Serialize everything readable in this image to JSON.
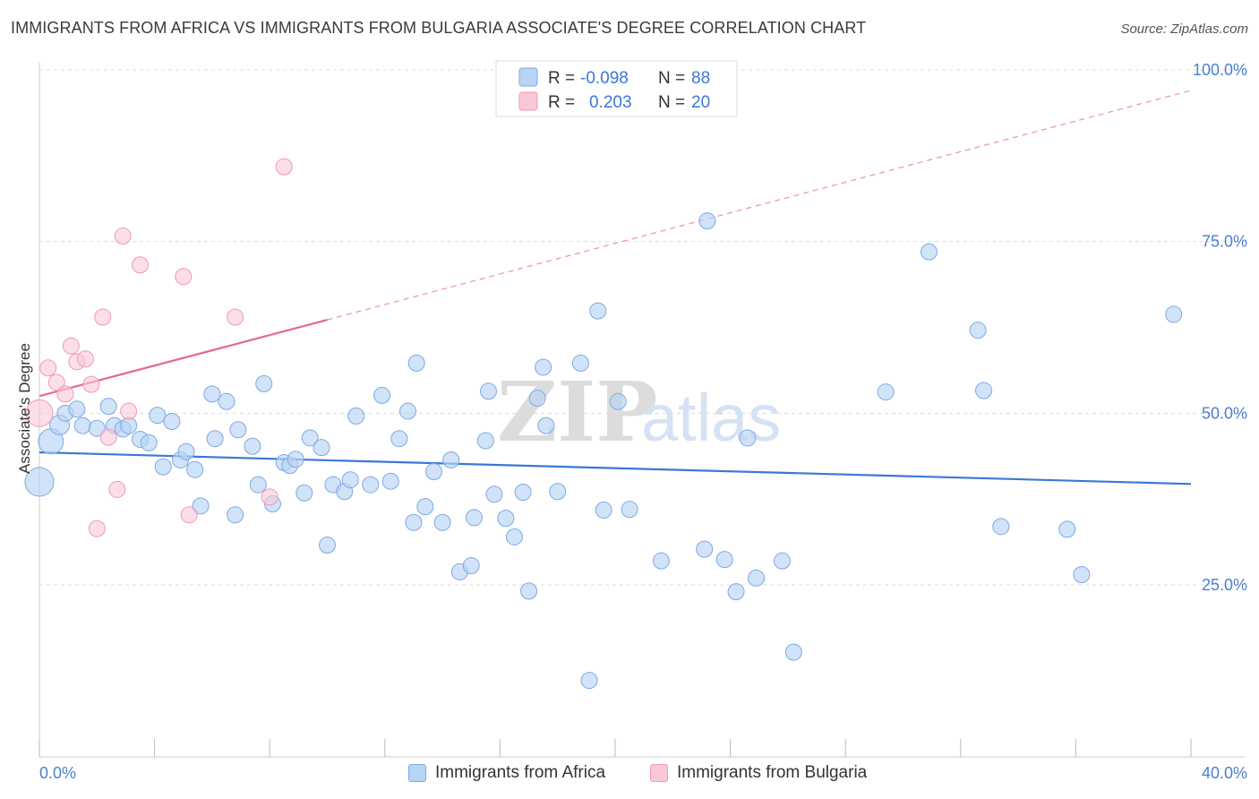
{
  "title": "IMMIGRANTS FROM AFRICA VS IMMIGRANTS FROM BULGARIA ASSOCIATE'S DEGREE CORRELATION CHART",
  "source": "Source: ZipAtlas.com",
  "watermark": {
    "zip": "ZIP",
    "atlas": "atlas"
  },
  "legend_top": {
    "africa": {
      "r_label": "R =",
      "r_value": "-0.098",
      "n_label": "N =",
      "n_value": "88"
    },
    "bulgaria": {
      "r_label": "R =",
      "r_value": "0.203",
      "n_label": "N =",
      "n_value": "20"
    }
  },
  "legend_bottom": {
    "africa": "Immigrants from Africa",
    "bulgaria": "Immigrants from Bulgaria"
  },
  "colors": {
    "africa_fill": "#b8d4f5",
    "africa_stroke": "#7ea9e0",
    "africa_line": "#3b78d8",
    "bulgaria_fill": "#f9c8d8",
    "bulgaria_stroke": "#ef9ab6",
    "bulgaria_line": "#e46a93",
    "axis_text": "#4a7fd0",
    "grid": "#dcdcdc"
  },
  "chart_data": {
    "type": "scatter",
    "title": "IMMIGRANTS FROM AFRICA VS IMMIGRANTS FROM BULGARIA ASSOCIATE'S DEGREE CORRELATION CHART",
    "xlabel": "",
    "ylabel": "Associate's Degree",
    "xlim": [
      0,
      40
    ],
    "ylim": [
      0,
      102
    ],
    "x_tick_labels": [
      "0.0%",
      "40.0%"
    ],
    "y_ticks": [
      25,
      50,
      75,
      100
    ],
    "y_tick_labels": [
      "25.0%",
      "50.0%",
      "75.0%",
      "100.0%"
    ],
    "grid": true,
    "legend_placement": "top-center",
    "series": [
      {
        "name": "Immigrants from Africa",
        "r": -0.098,
        "n": 88,
        "trend": {
          "x": [
            0,
            40
          ],
          "y": [
            44.3,
            39.7
          ]
        },
        "points": [
          [
            0.0,
            40.0,
            16
          ],
          [
            0.4,
            45.9,
            14
          ],
          [
            0.7,
            48.3,
            11
          ],
          [
            0.9,
            50.0,
            9
          ],
          [
            1.3,
            50.6,
            9
          ],
          [
            1.5,
            48.2,
            9
          ],
          [
            2.0,
            47.8,
            9
          ],
          [
            2.4,
            51.0,
            9
          ],
          [
            2.6,
            48.2,
            9
          ],
          [
            2.9,
            47.7,
            9
          ],
          [
            3.1,
            48.2,
            9
          ],
          [
            3.5,
            46.2,
            9
          ],
          [
            3.8,
            45.7,
            9
          ],
          [
            4.1,
            49.7,
            9
          ],
          [
            4.3,
            42.2,
            9
          ],
          [
            4.6,
            48.8,
            9
          ],
          [
            4.9,
            43.2,
            9
          ],
          [
            5.1,
            44.4,
            9
          ],
          [
            5.4,
            41.8,
            9
          ],
          [
            5.6,
            36.5,
            9
          ],
          [
            6.0,
            52.8,
            9
          ],
          [
            6.1,
            46.3,
            9
          ],
          [
            6.5,
            51.7,
            9
          ],
          [
            6.8,
            35.2,
            9
          ],
          [
            6.9,
            47.6,
            9
          ],
          [
            7.4,
            45.2,
            9
          ],
          [
            7.6,
            39.6,
            9
          ],
          [
            7.8,
            54.3,
            9
          ],
          [
            8.1,
            36.8,
            9
          ],
          [
            8.5,
            42.8,
            9
          ],
          [
            8.7,
            42.4,
            9
          ],
          [
            8.9,
            43.3,
            9
          ],
          [
            9.2,
            38.4,
            9
          ],
          [
            9.4,
            46.4,
            9
          ],
          [
            9.8,
            45.0,
            9
          ],
          [
            10.0,
            30.8,
            9
          ],
          [
            10.2,
            39.6,
            9
          ],
          [
            10.6,
            38.6,
            9
          ],
          [
            10.8,
            40.3,
            9
          ],
          [
            11.0,
            49.6,
            9
          ],
          [
            11.5,
            39.6,
            9
          ],
          [
            11.9,
            52.6,
            9
          ],
          [
            12.2,
            40.1,
            9
          ],
          [
            12.5,
            46.3,
            9
          ],
          [
            12.8,
            50.3,
            9
          ],
          [
            13.0,
            34.1,
            9
          ],
          [
            13.4,
            36.4,
            9
          ],
          [
            13.1,
            57.3,
            9
          ],
          [
            13.7,
            41.5,
            9
          ],
          [
            14.0,
            34.1,
            9
          ],
          [
            14.3,
            43.2,
            9
          ],
          [
            14.6,
            26.9,
            9
          ],
          [
            15.0,
            27.8,
            9
          ],
          [
            15.1,
            34.8,
            9
          ],
          [
            15.5,
            46.0,
            9
          ],
          [
            15.6,
            53.2,
            9
          ],
          [
            15.8,
            38.2,
            9
          ],
          [
            16.2,
            34.7,
            9
          ],
          [
            16.5,
            32.0,
            9
          ],
          [
            16.8,
            38.5,
            9
          ],
          [
            17.0,
            24.1,
            9
          ],
          [
            17.3,
            52.2,
            9
          ],
          [
            17.5,
            56.7,
            9
          ],
          [
            17.6,
            48.2,
            9
          ],
          [
            18.0,
            38.6,
            9
          ],
          [
            18.8,
            57.3,
            9
          ],
          [
            19.1,
            11.1,
            9
          ],
          [
            19.4,
            64.9,
            9
          ],
          [
            19.6,
            35.9,
            9
          ],
          [
            20.1,
            51.7,
            9
          ],
          [
            20.5,
            36.0,
            9
          ],
          [
            21.6,
            28.5,
            9
          ],
          [
            23.1,
            30.2,
            9
          ],
          [
            23.2,
            78.0,
            9
          ],
          [
            23.8,
            28.7,
            9
          ],
          [
            24.2,
            24.0,
            9
          ],
          [
            24.6,
            46.4,
            9
          ],
          [
            24.9,
            26.0,
            9
          ],
          [
            25.8,
            28.5,
            9
          ],
          [
            26.2,
            15.2,
            9
          ],
          [
            29.4,
            53.1,
            9
          ],
          [
            30.9,
            73.5,
            9
          ],
          [
            32.6,
            62.1,
            9
          ],
          [
            32.8,
            53.3,
            9
          ],
          [
            33.4,
            33.5,
            9
          ],
          [
            35.7,
            33.1,
            9
          ],
          [
            36.2,
            26.5,
            9
          ],
          [
            39.4,
            64.4,
            9
          ]
        ]
      },
      {
        "name": "Immigrants from Bulgaria",
        "r": 0.203,
        "n": 20,
        "trend": {
          "x": [
            0,
            10
          ],
          "y": [
            52.5,
            63.6
          ]
        },
        "trend_dashed": {
          "x": [
            10,
            40
          ],
          "y": [
            63.6,
            97.0
          ]
        },
        "points": [
          [
            0.0,
            50.0,
            15
          ],
          [
            0.3,
            56.6,
            9
          ],
          [
            0.6,
            54.5,
            9
          ],
          [
            0.9,
            52.8,
            9
          ],
          [
            1.1,
            59.8,
            9
          ],
          [
            1.3,
            57.5,
            9
          ],
          [
            1.6,
            57.9,
            9
          ],
          [
            1.8,
            54.2,
            9
          ],
          [
            2.0,
            33.2,
            9
          ],
          [
            2.2,
            64.0,
            9
          ],
          [
            2.4,
            46.5,
            9
          ],
          [
            2.7,
            38.9,
            9
          ],
          [
            2.9,
            75.8,
            9
          ],
          [
            3.1,
            50.3,
            9
          ],
          [
            3.5,
            71.6,
            9
          ],
          [
            5.0,
            69.9,
            9
          ],
          [
            5.2,
            35.2,
            9
          ],
          [
            6.8,
            64.0,
            9
          ],
          [
            8.0,
            37.8,
            9
          ],
          [
            8.5,
            85.9,
            9
          ]
        ]
      }
    ]
  }
}
